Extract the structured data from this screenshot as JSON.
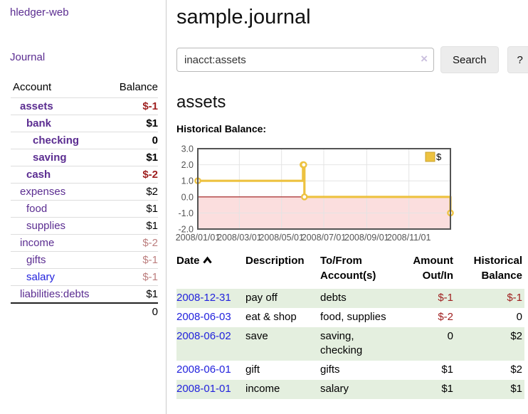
{
  "app": {
    "title": "hledger-web"
  },
  "colors": {
    "accent_purple": "#5b2d91",
    "link_blue": "#2222dd",
    "negative_strong": "#9e1f1f",
    "negative_soft": "#bc7e7e",
    "negative_table": "#a02020",
    "row_stripe_green": "#e4efdf",
    "chart_gold": "#edc240",
    "chart_negative_fill": "#fbdede",
    "chart_zero_line": "#a01818"
  },
  "sidebar": {
    "journal_link": "Journal",
    "table": {
      "account_header": "Account",
      "balance_header": "Balance",
      "rows": [
        {
          "name": "assets",
          "balance": "$-1",
          "depth": 1,
          "bold": true,
          "balance_class": "neg"
        },
        {
          "name": "bank",
          "balance": "$1",
          "depth": 2,
          "bold": true,
          "balance_class": ""
        },
        {
          "name": "checking",
          "balance": "0",
          "depth": 3,
          "bold": true,
          "balance_class": ""
        },
        {
          "name": "saving",
          "balance": "$1",
          "depth": 3,
          "bold": true,
          "balance_class": ""
        },
        {
          "name": "cash",
          "balance": "$-2",
          "depth": 2,
          "bold": true,
          "balance_class": "neg"
        },
        {
          "name": "expenses",
          "balance": "$2",
          "depth": 1,
          "bold": false,
          "balance_class": ""
        },
        {
          "name": "food",
          "balance": "$1",
          "depth": 2,
          "bold": false,
          "balance_class": ""
        },
        {
          "name": "supplies",
          "balance": "$1",
          "depth": 2,
          "bold": false,
          "balance_class": ""
        },
        {
          "name": "income",
          "balance": "$-2",
          "depth": 1,
          "bold": false,
          "balance_class": "neg-soft"
        },
        {
          "name": "gifts",
          "balance": "$-1",
          "depth": 2,
          "bold": false,
          "balance_class": "neg-soft"
        },
        {
          "name": "salary",
          "balance": "$-1",
          "depth": 2,
          "bold": false,
          "balance_class": "neg-soft",
          "blue": true
        },
        {
          "name": "liabilities:debts",
          "balance": "$1",
          "depth": 1,
          "bold": false,
          "balance_class": ""
        }
      ],
      "total": "0"
    }
  },
  "main": {
    "title": "sample.journal",
    "search": {
      "value": "inacct:assets",
      "clear_icon": "×",
      "button": "Search",
      "help_button": "?"
    },
    "account_heading": "assets",
    "chart_label": "Historical Balance:"
  },
  "chart_data": {
    "type": "line",
    "style": "step",
    "title": "Historical Balance",
    "series": [
      {
        "name": "$",
        "color": "#edc240",
        "points": [
          [
            "2008-01-01",
            1
          ],
          [
            "2008-06-01",
            2
          ],
          [
            "2008-06-02",
            2
          ],
          [
            "2008-06-03",
            0
          ],
          [
            "2008-12-31",
            -1
          ]
        ]
      }
    ],
    "ylim": [
      -2,
      3
    ],
    "yticks": [
      "3.0",
      "2.0",
      "1.0",
      "0.0",
      "-1.0",
      "-2.0"
    ],
    "xticks": [
      "2008/01/01",
      "2008/03/01",
      "2008/05/01",
      "2008/07/01",
      "2008/09/01",
      "2008/11/01"
    ],
    "x_range": [
      "2008-01-01",
      "2008-12-31"
    ],
    "grid": true,
    "legend": {
      "label": "$",
      "position": "top-right"
    },
    "negative_region_fill": "#fbdede",
    "zero_line_color": "#a01818"
  },
  "register": {
    "headers": {
      "date": "Date",
      "description": "Description",
      "account": "To/From Account(s)",
      "amount": "Amount Out/In",
      "balance": "Historical Balance"
    },
    "sort_icon": "chevron-up",
    "rows": [
      {
        "date": "2008-12-31",
        "description": "pay off",
        "accounts": "debts",
        "amount": "$-1",
        "balance": "$-1",
        "amount_neg": true,
        "balance_neg": true
      },
      {
        "date": "2008-06-03",
        "description": "eat & shop",
        "accounts": "food, supplies",
        "amount": "$-2",
        "balance": "0",
        "amount_neg": true,
        "balance_neg": false
      },
      {
        "date": "2008-06-02",
        "description": "save",
        "accounts": "saving, checking",
        "amount": "0",
        "balance": "$2",
        "amount_neg": false,
        "balance_neg": false
      },
      {
        "date": "2008-06-01",
        "description": "gift",
        "accounts": "gifts",
        "amount": "$1",
        "balance": "$2",
        "amount_neg": false,
        "balance_neg": false
      },
      {
        "date": "2008-01-01",
        "description": "income",
        "accounts": "salary",
        "amount": "$1",
        "balance": "$1",
        "amount_neg": false,
        "balance_neg": false
      }
    ]
  }
}
